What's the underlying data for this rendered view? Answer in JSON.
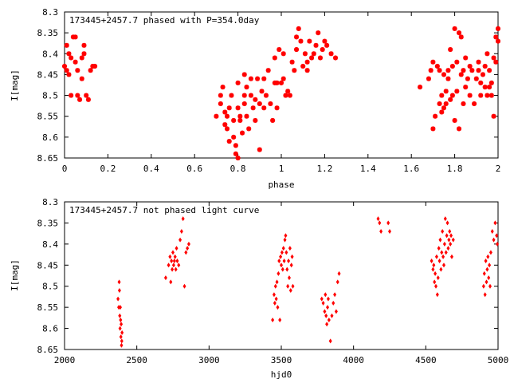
{
  "colors": {
    "points": "#ff0000",
    "axes": "#000000",
    "background": "#ffffff"
  },
  "chart_data": [
    {
      "type": "scatter",
      "title": "173445+2457.7 phased with P=354.0day",
      "xlabel": "phase",
      "ylabel": "I[mag]",
      "xlim": [
        0,
        2
      ],
      "ylim": [
        8.65,
        8.3
      ],
      "y_inverted": true,
      "marker": "asterisk",
      "grid": false,
      "xticks": [
        {
          "v": 0,
          "t": "0"
        },
        {
          "v": 0.2,
          "t": "0.2"
        },
        {
          "v": 0.4,
          "t": "0.4"
        },
        {
          "v": 0.6,
          "t": "0.6"
        },
        {
          "v": 0.8,
          "t": "0.8"
        },
        {
          "v": 1,
          "t": "1"
        },
        {
          "v": 1.2,
          "t": "1.2"
        },
        {
          "v": 1.4,
          "t": "1.4"
        },
        {
          "v": 1.6,
          "t": "1.6"
        },
        {
          "v": 1.8,
          "t": "1.8"
        },
        {
          "v": 2,
          "t": "2"
        }
      ],
      "yticks": [
        {
          "v": 8.3,
          "t": "8.3"
        },
        {
          "v": 8.35,
          "t": "8.35"
        },
        {
          "v": 8.4,
          "t": "8.4"
        },
        {
          "v": 8.45,
          "t": "8.45"
        },
        {
          "v": 8.5,
          "t": "8.5"
        },
        {
          "v": 8.55,
          "t": "8.55"
        },
        {
          "v": 8.6,
          "t": "8.6"
        },
        {
          "v": 8.65,
          "t": "8.65"
        }
      ],
      "points": [
        [
          0.0,
          8.43
        ],
        [
          0.01,
          8.38
        ],
        [
          0.01,
          8.44
        ],
        [
          0.02,
          8.4
        ],
        [
          0.02,
          8.45
        ],
        [
          0.03,
          8.41
        ],
        [
          0.03,
          8.5
        ],
        [
          0.04,
          8.36
        ],
        [
          0.05,
          8.36
        ],
        [
          0.05,
          8.42
        ],
        [
          0.06,
          8.44
        ],
        [
          0.06,
          8.5
        ],
        [
          0.07,
          8.51
        ],
        [
          0.08,
          8.46
        ],
        [
          0.08,
          8.41
        ],
        [
          0.09,
          8.38
        ],
        [
          0.09,
          8.4
        ],
        [
          0.1,
          8.5
        ],
        [
          0.11,
          8.51
        ],
        [
          0.12,
          8.44
        ],
        [
          0.13,
          8.43
        ],
        [
          0.14,
          8.43
        ],
        [
          0.7,
          8.55
        ],
        [
          0.72,
          8.52
        ],
        [
          0.72,
          8.5
        ],
        [
          0.73,
          8.48
        ],
        [
          0.74,
          8.54
        ],
        [
          0.74,
          8.57
        ],
        [
          0.75,
          8.55
        ],
        [
          0.75,
          8.58
        ],
        [
          0.76,
          8.53
        ],
        [
          0.76,
          8.61
        ],
        [
          0.77,
          8.5
        ],
        [
          0.78,
          8.56
        ],
        [
          0.78,
          8.6
        ],
        [
          0.79,
          8.62
        ],
        [
          0.79,
          8.64
        ],
        [
          0.8,
          8.65
        ],
        [
          0.8,
          8.53
        ],
        [
          0.8,
          8.47
        ],
        [
          0.81,
          8.55
        ],
        [
          0.81,
          8.56
        ],
        [
          0.82,
          8.59
        ],
        [
          0.83,
          8.52
        ],
        [
          0.83,
          8.5
        ],
        [
          0.83,
          8.45
        ],
        [
          0.84,
          8.55
        ],
        [
          0.84,
          8.48
        ],
        [
          0.85,
          8.58
        ],
        [
          0.86,
          8.5
        ],
        [
          0.86,
          8.46
        ],
        [
          0.87,
          8.53
        ],
        [
          0.88,
          8.51
        ],
        [
          0.88,
          8.56
        ],
        [
          0.89,
          8.46
        ],
        [
          0.9,
          8.52
        ],
        [
          0.9,
          8.63
        ],
        [
          0.91,
          8.49
        ],
        [
          0.92,
          8.46
        ],
        [
          0.92,
          8.53
        ],
        [
          0.93,
          8.5
        ],
        [
          0.94,
          8.44
        ],
        [
          0.95,
          8.52
        ],
        [
          0.96,
          8.56
        ],
        [
          0.97,
          8.47
        ],
        [
          0.97,
          8.41
        ],
        [
          0.98,
          8.53
        ],
        [
          0.98,
          8.47
        ],
        [
          0.99,
          8.39
        ],
        [
          1.0,
          8.47
        ],
        [
          1.01,
          8.4
        ],
        [
          1.01,
          8.46
        ],
        [
          1.02,
          8.5
        ],
        [
          1.03,
          8.49
        ],
        [
          1.04,
          8.5
        ],
        [
          1.05,
          8.42
        ],
        [
          1.06,
          8.44
        ],
        [
          1.07,
          8.36
        ],
        [
          1.07,
          8.39
        ],
        [
          1.08,
          8.34
        ],
        [
          1.09,
          8.37
        ],
        [
          1.1,
          8.43
        ],
        [
          1.11,
          8.4
        ],
        [
          1.12,
          8.42
        ],
        [
          1.12,
          8.44
        ],
        [
          1.13,
          8.37
        ],
        [
          1.14,
          8.41
        ],
        [
          1.15,
          8.4
        ],
        [
          1.16,
          8.38
        ],
        [
          1.17,
          8.35
        ],
        [
          1.18,
          8.41
        ],
        [
          1.19,
          8.39
        ],
        [
          1.2,
          8.37
        ],
        [
          1.21,
          8.38
        ],
        [
          1.23,
          8.4
        ],
        [
          1.25,
          8.41
        ],
        [
          1.64,
          8.48
        ],
        [
          1.68,
          8.46
        ],
        [
          1.69,
          8.44
        ],
        [
          1.7,
          8.42
        ],
        [
          1.7,
          8.58
        ],
        [
          1.71,
          8.55
        ],
        [
          1.72,
          8.43
        ],
        [
          1.73,
          8.44
        ],
        [
          1.73,
          8.52
        ],
        [
          1.74,
          8.54
        ],
        [
          1.74,
          8.5
        ],
        [
          1.75,
          8.45
        ],
        [
          1.75,
          8.53
        ],
        [
          1.76,
          8.52
        ],
        [
          1.76,
          8.49
        ],
        [
          1.77,
          8.46
        ],
        [
          1.77,
          8.44
        ],
        [
          1.78,
          8.39
        ],
        [
          1.78,
          8.51
        ],
        [
          1.79,
          8.43
        ],
        [
          1.79,
          8.5
        ],
        [
          1.8,
          8.34
        ],
        [
          1.8,
          8.56
        ],
        [
          1.81,
          8.42
        ],
        [
          1.81,
          8.49
        ],
        [
          1.82,
          8.35
        ],
        [
          1.82,
          8.58
        ],
        [
          1.83,
          8.36
        ],
        [
          1.83,
          8.45
        ],
        [
          1.84,
          8.52
        ],
        [
          1.84,
          8.44
        ],
        [
          1.85,
          8.41
        ],
        [
          1.85,
          8.48
        ],
        [
          1.86,
          8.46
        ],
        [
          1.87,
          8.5
        ],
        [
          1.87,
          8.43
        ],
        [
          1.88,
          8.44
        ],
        [
          1.89,
          8.52
        ],
        [
          1.9,
          8.46
        ],
        [
          1.91,
          8.44
        ],
        [
          1.91,
          8.42
        ],
        [
          1.92,
          8.47
        ],
        [
          1.92,
          8.5
        ],
        [
          1.93,
          8.45
        ],
        [
          1.94,
          8.48
        ],
        [
          1.94,
          8.43
        ],
        [
          1.95,
          8.5
        ],
        [
          1.95,
          8.4
        ],
        [
          1.96,
          8.44
        ],
        [
          1.96,
          8.48
        ],
        [
          1.97,
          8.47
        ],
        [
          1.97,
          8.5
        ],
        [
          1.98,
          8.41
        ],
        [
          1.98,
          8.55
        ],
        [
          1.99,
          8.42
        ],
        [
          1.99,
          8.36
        ],
        [
          2.0,
          8.34
        ],
        [
          2.0,
          8.37
        ]
      ]
    },
    {
      "type": "scatter",
      "title": "173445+2457.7 not phased light curve",
      "xlabel": "hjd0",
      "ylabel": "I[mag]",
      "xlim": [
        2000,
        5000
      ],
      "ylim": [
        8.65,
        8.3
      ],
      "y_inverted": true,
      "marker": "diamond",
      "grid": false,
      "xticks": [
        {
          "v": 2000,
          "t": "2000"
        },
        {
          "v": 2500,
          "t": "2500"
        },
        {
          "v": 3000,
          "t": "3000"
        },
        {
          "v": 3500,
          "t": "3500"
        },
        {
          "v": 4000,
          "t": "4000"
        },
        {
          "v": 4500,
          "t": "4500"
        },
        {
          "v": 5000,
          "t": "5000"
        }
      ],
      "yticks": [
        {
          "v": 8.3,
          "t": "8.3"
        },
        {
          "v": 8.35,
          "t": "8.35"
        },
        {
          "v": 8.4,
          "t": "8.4"
        },
        {
          "v": 8.45,
          "t": "8.45"
        },
        {
          "v": 8.5,
          "t": "8.5"
        },
        {
          "v": 8.55,
          "t": "8.55"
        },
        {
          "v": 8.6,
          "t": "8.6"
        },
        {
          "v": 8.65,
          "t": "8.65"
        }
      ],
      "points": [
        [
          2370,
          8.53
        ],
        [
          2375,
          8.55
        ],
        [
          2378,
          8.49
        ],
        [
          2380,
          8.51
        ],
        [
          2382,
          8.57
        ],
        [
          2384,
          8.6
        ],
        [
          2386,
          8.55
        ],
        [
          2388,
          8.58
        ],
        [
          2390,
          8.62
        ],
        [
          2392,
          8.59
        ],
        [
          2394,
          8.64
        ],
        [
          2396,
          8.63
        ],
        [
          2398,
          8.61
        ],
        [
          2700,
          8.48
        ],
        [
          2720,
          8.45
        ],
        [
          2730,
          8.43
        ],
        [
          2735,
          8.49
        ],
        [
          2740,
          8.44
        ],
        [
          2745,
          8.46
        ],
        [
          2750,
          8.42
        ],
        [
          2755,
          8.45
        ],
        [
          2760,
          8.44
        ],
        [
          2765,
          8.43
        ],
        [
          2770,
          8.46
        ],
        [
          2775,
          8.41
        ],
        [
          2780,
          8.44
        ],
        [
          2790,
          8.45
        ],
        [
          2800,
          8.39
        ],
        [
          2810,
          8.37
        ],
        [
          2820,
          8.34
        ],
        [
          2830,
          8.5
        ],
        [
          2840,
          8.42
        ],
        [
          2850,
          8.41
        ],
        [
          2860,
          8.4
        ],
        [
          3440,
          8.58
        ],
        [
          3450,
          8.52
        ],
        [
          3455,
          8.54
        ],
        [
          3460,
          8.5
        ],
        [
          3465,
          8.53
        ],
        [
          3470,
          8.49
        ],
        [
          3475,
          8.55
        ],
        [
          3480,
          8.47
        ],
        [
          3485,
          8.44
        ],
        [
          3490,
          8.58
        ],
        [
          3495,
          8.43
        ],
        [
          3500,
          8.45
        ],
        [
          3505,
          8.42
        ],
        [
          3510,
          8.46
        ],
        [
          3515,
          8.41
        ],
        [
          3520,
          8.44
        ],
        [
          3525,
          8.39
        ],
        [
          3530,
          8.38
        ],
        [
          3535,
          8.42
        ],
        [
          3540,
          8.46
        ],
        [
          3545,
          8.5
        ],
        [
          3550,
          8.44
        ],
        [
          3555,
          8.48
        ],
        [
          3560,
          8.41
        ],
        [
          3565,
          8.51
        ],
        [
          3570,
          8.45
        ],
        [
          3575,
          8.43
        ],
        [
          3580,
          8.5
        ],
        [
          3780,
          8.53
        ],
        [
          3790,
          8.54
        ],
        [
          3800,
          8.56
        ],
        [
          3805,
          8.52
        ],
        [
          3810,
          8.57
        ],
        [
          3815,
          8.59
        ],
        [
          3820,
          8.55
        ],
        [
          3825,
          8.53
        ],
        [
          3830,
          8.58
        ],
        [
          3840,
          8.63
        ],
        [
          3850,
          8.57
        ],
        [
          3860,
          8.54
        ],
        [
          3870,
          8.52
        ],
        [
          3880,
          8.56
        ],
        [
          3890,
          8.49
        ],
        [
          3900,
          8.47
        ],
        [
          4170,
          8.34
        ],
        [
          4180,
          8.35
        ],
        [
          4190,
          8.37
        ],
        [
          4240,
          8.35
        ],
        [
          4250,
          8.37
        ],
        [
          4540,
          8.44
        ],
        [
          4550,
          8.46
        ],
        [
          4555,
          8.45
        ],
        [
          4560,
          8.49
        ],
        [
          4565,
          8.47
        ],
        [
          4570,
          8.5
        ],
        [
          4575,
          8.43
        ],
        [
          4580,
          8.52
        ],
        [
          4585,
          8.48
        ],
        [
          4590,
          8.41
        ],
        [
          4595,
          8.44
        ],
        [
          4600,
          8.39
        ],
        [
          4605,
          8.46
        ],
        [
          4610,
          8.42
        ],
        [
          4615,
          8.37
        ],
        [
          4620,
          8.43
        ],
        [
          4625,
          8.45
        ],
        [
          4630,
          8.4
        ],
        [
          4635,
          8.34
        ],
        [
          4640,
          8.42
        ],
        [
          4645,
          8.38
        ],
        [
          4650,
          8.35
        ],
        [
          4655,
          8.41
        ],
        [
          4660,
          8.39
        ],
        [
          4665,
          8.37
        ],
        [
          4670,
          8.4
        ],
        [
          4675,
          8.38
        ],
        [
          4680,
          8.43
        ],
        [
          4690,
          8.39
        ],
        [
          4900,
          8.5
        ],
        [
          4905,
          8.47
        ],
        [
          4910,
          8.52
        ],
        [
          4915,
          8.44
        ],
        [
          4920,
          8.49
        ],
        [
          4925,
          8.46
        ],
        [
          4930,
          8.43
        ],
        [
          4935,
          8.48
        ],
        [
          4940,
          8.45
        ],
        [
          4945,
          8.5
        ],
        [
          4950,
          8.42
        ],
        [
          4960,
          8.37
        ],
        [
          4970,
          8.39
        ],
        [
          4980,
          8.35
        ],
        [
          4990,
          8.38
        ],
        [
          4995,
          8.4
        ]
      ]
    }
  ]
}
